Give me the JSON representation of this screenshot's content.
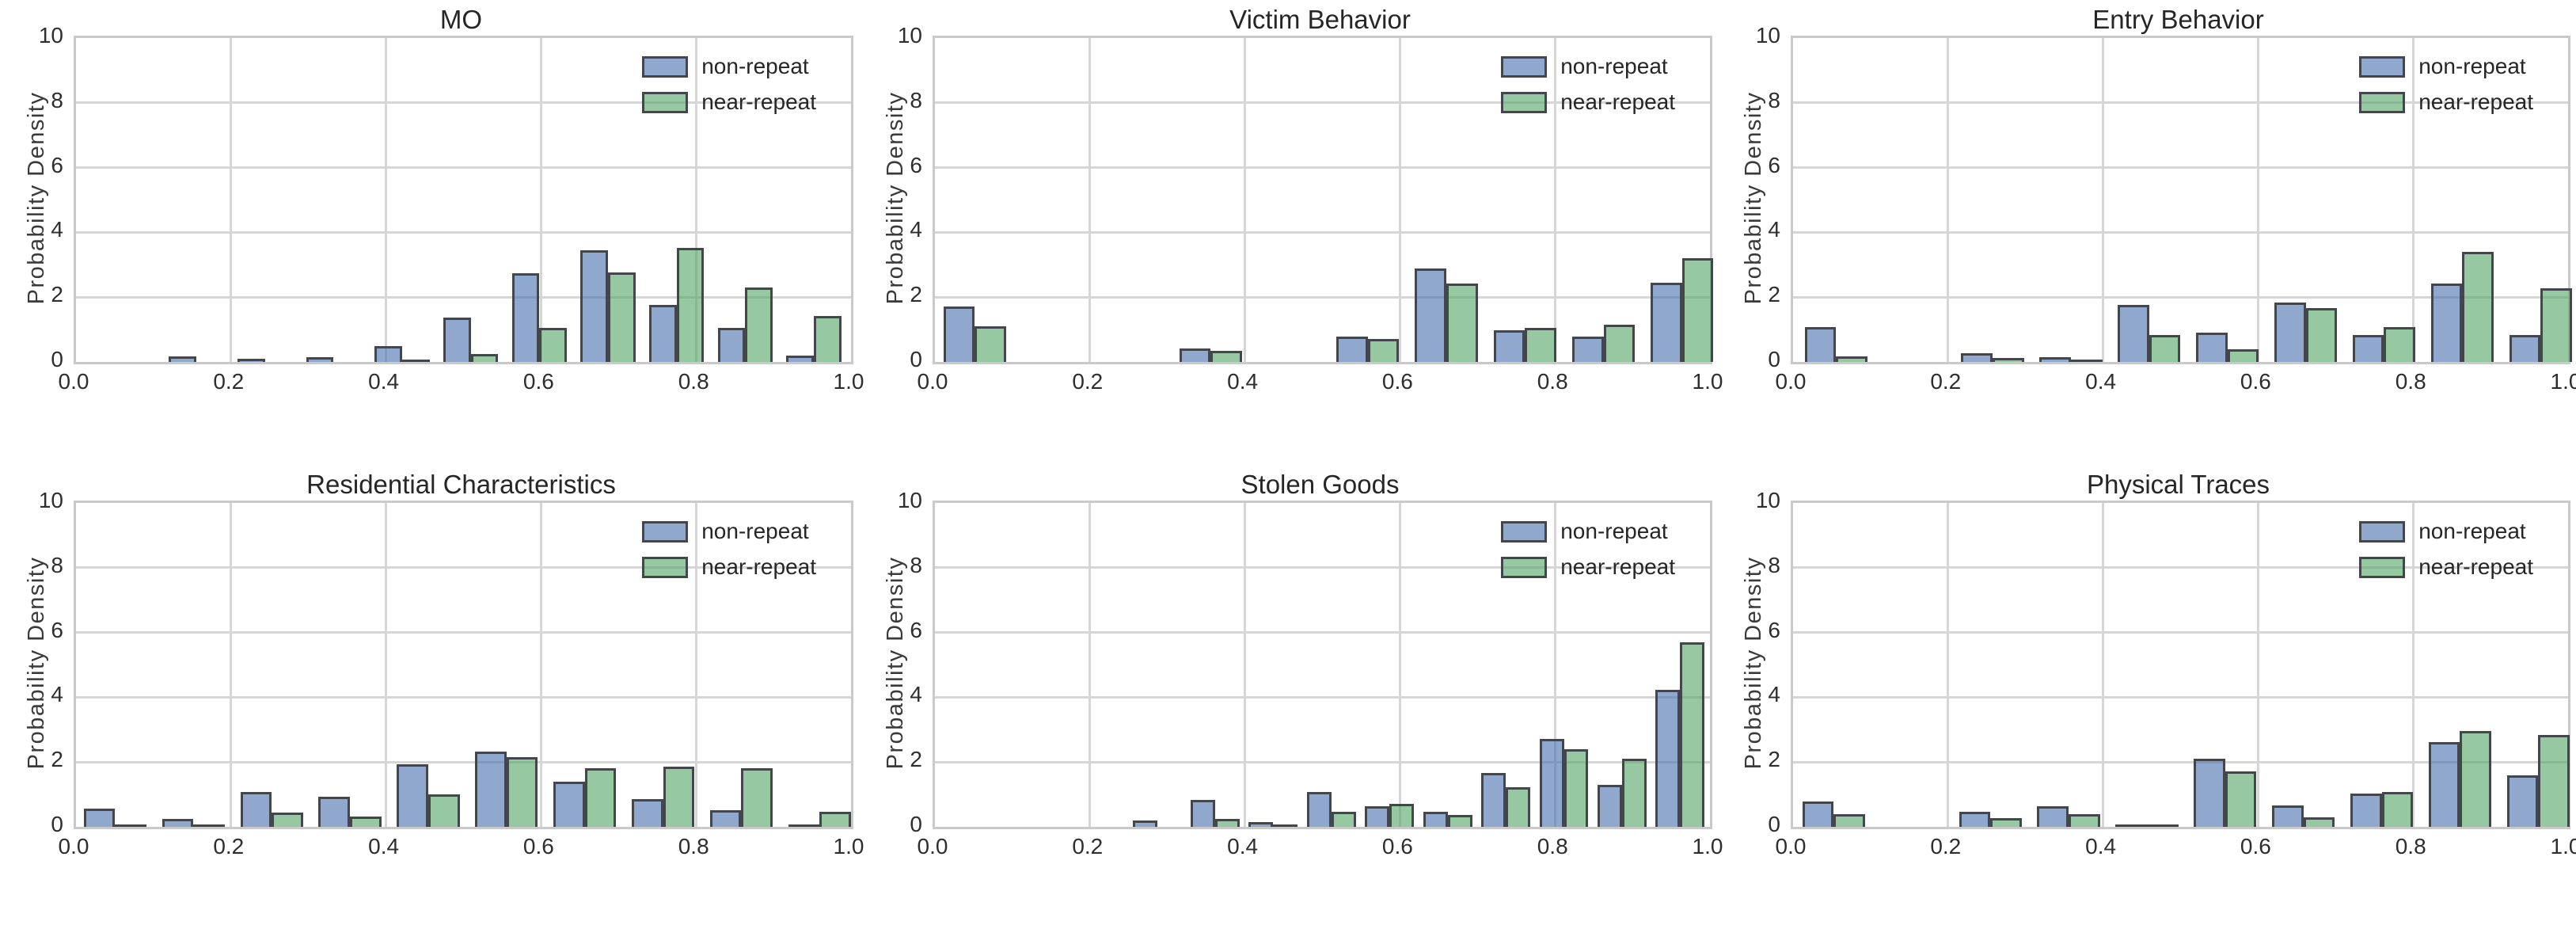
{
  "shared": {
    "ylabel": "Probability Density",
    "x_tick_labels": [
      "0.0",
      "0.2",
      "0.4",
      "0.6",
      "0.8",
      "1.0"
    ],
    "y_tick_labels": [
      "0",
      "2",
      "4",
      "6",
      "8",
      "10"
    ],
    "ylim": [
      0,
      10
    ],
    "xlim": [
      0,
      1
    ],
    "grid": "on",
    "legend_position": "upper-right",
    "legend_items": [
      {
        "label": "non-repeat",
        "color": "#4C72B0"
      },
      {
        "label": "near-repeat",
        "color": "#55A868"
      }
    ]
  },
  "colors": {
    "non_repeat_fill": "#4C72B0",
    "near_repeat_fill": "#55A868",
    "bar_fill_alpha": 0.62,
    "bar_edge": "#43474C",
    "gridline": "#D6D6D6",
    "spine": "#CACACA",
    "text": "#262626",
    "background": "#FFFFFF"
  },
  "chart_data": [
    {
      "type": "bar",
      "title": "MO",
      "ylabel": "Probability Density",
      "ylim": [
        0,
        10
      ],
      "bar_width": 0.0354,
      "bin_left_edges": [
        0.12,
        0.2085,
        0.297,
        0.3855,
        0.474,
        0.5625,
        0.651,
        0.7395,
        0.828,
        0.9165
      ],
      "series": [
        {
          "name": "non-repeat",
          "values": [
            0.18,
            0.09,
            0.15,
            0.48,
            1.36,
            2.75,
            3.45,
            1.76,
            1.05,
            0.19
          ]
        },
        {
          "name": "near-repeat",
          "values": [
            0,
            0,
            0,
            0.05,
            0.24,
            1.06,
            2.77,
            3.52,
            2.31,
            1.41
          ]
        }
      ]
    },
    {
      "type": "bar",
      "title": "Victim Behavior",
      "ylabel": "Probability Density",
      "ylim": [
        0,
        10
      ],
      "bar_width": 0.0405,
      "bin_left_edges": [
        0.011,
        0.1124,
        0.2138,
        0.3152,
        0.4166,
        0.518,
        0.6194,
        0.7208,
        0.8222,
        0.9236
      ],
      "series": [
        {
          "name": "non-repeat",
          "values": [
            1.72,
            0,
            0,
            0.42,
            0,
            0.78,
            2.88,
            0.99,
            0.78,
            2.44
          ]
        },
        {
          "name": "near-repeat",
          "values": [
            1.11,
            0,
            0,
            0.34,
            0,
            0.7,
            2.43,
            1.04,
            1.15,
            3.21
          ]
        }
      ]
    },
    {
      "type": "bar",
      "title": "Entry Behavior",
      "ylabel": "Probability Density",
      "ylim": [
        0,
        10
      ],
      "bar_width": 0.0405,
      "bin_left_edges": [
        0.015,
        0.116,
        0.217,
        0.318,
        0.419,
        0.52,
        0.621,
        0.722,
        0.823,
        0.924
      ],
      "series": [
        {
          "name": "non-repeat",
          "values": [
            1.08,
            0,
            0.26,
            0.15,
            1.76,
            0.9,
            1.83,
            0.82,
            2.41,
            0.82
          ]
        },
        {
          "name": "near-repeat",
          "values": [
            0.17,
            0,
            0.13,
            0.05,
            0.82,
            0.4,
            1.67,
            1.08,
            3.4,
            2.28
          ]
        }
      ]
    },
    {
      "type": "bar",
      "title": "Residential Characteristics",
      "ylabel": "Probability Density",
      "ylim": [
        0,
        10
      ],
      "bar_width": 0.0405,
      "bin_left_edges": [
        0.01,
        0.111,
        0.212,
        0.313,
        0.414,
        0.515,
        0.616,
        0.717,
        0.818,
        0.919
      ],
      "series": [
        {
          "name": "non-repeat",
          "values": [
            0.57,
            0.24,
            1.07,
            0.94,
            1.92,
            2.33,
            1.39,
            0.86,
            0.52,
            0.05
          ]
        },
        {
          "name": "near-repeat",
          "values": [
            0.06,
            0.05,
            0.45,
            0.31,
            1.0,
            2.15,
            1.8,
            1.87,
            1.8,
            0.47
          ]
        }
      ]
    },
    {
      "type": "bar",
      "title": "Stolen Goods",
      "ylabel": "Probability Density",
      "ylim": [
        0,
        10
      ],
      "bar_width": 0.0316,
      "bin_left_edges": [
        0.255,
        0.33,
        0.405,
        0.48,
        0.555,
        0.63,
        0.705,
        0.78,
        0.855,
        0.93
      ],
      "series": [
        {
          "name": "non-repeat",
          "values": [
            0.19,
            0.83,
            0.15,
            1.08,
            0.63,
            0.47,
            1.66,
            2.71,
            1.29,
            4.24
          ]
        },
        {
          "name": "near-repeat",
          "values": [
            0,
            0.25,
            0.04,
            0.47,
            0.7,
            0.36,
            1.23,
            2.39,
            2.11,
            5.7
          ]
        }
      ]
    },
    {
      "type": "bar",
      "title": "Physical Traces",
      "ylabel": "Probability Density",
      "ylim": [
        0,
        10
      ],
      "bar_width": 0.0405,
      "bin_left_edges": [
        0.012,
        0.113,
        0.214,
        0.315,
        0.416,
        0.517,
        0.618,
        0.719,
        0.82,
        0.921
      ],
      "series": [
        {
          "name": "non-repeat",
          "values": [
            0.79,
            0,
            0.47,
            0.63,
            0.03,
            2.11,
            0.67,
            1.03,
            2.62,
            1.58
          ]
        },
        {
          "name": "near-repeat",
          "values": [
            0.38,
            0,
            0.28,
            0.38,
            0.03,
            1.72,
            0.3,
            1.08,
            2.96,
            2.84
          ]
        }
      ]
    }
  ]
}
